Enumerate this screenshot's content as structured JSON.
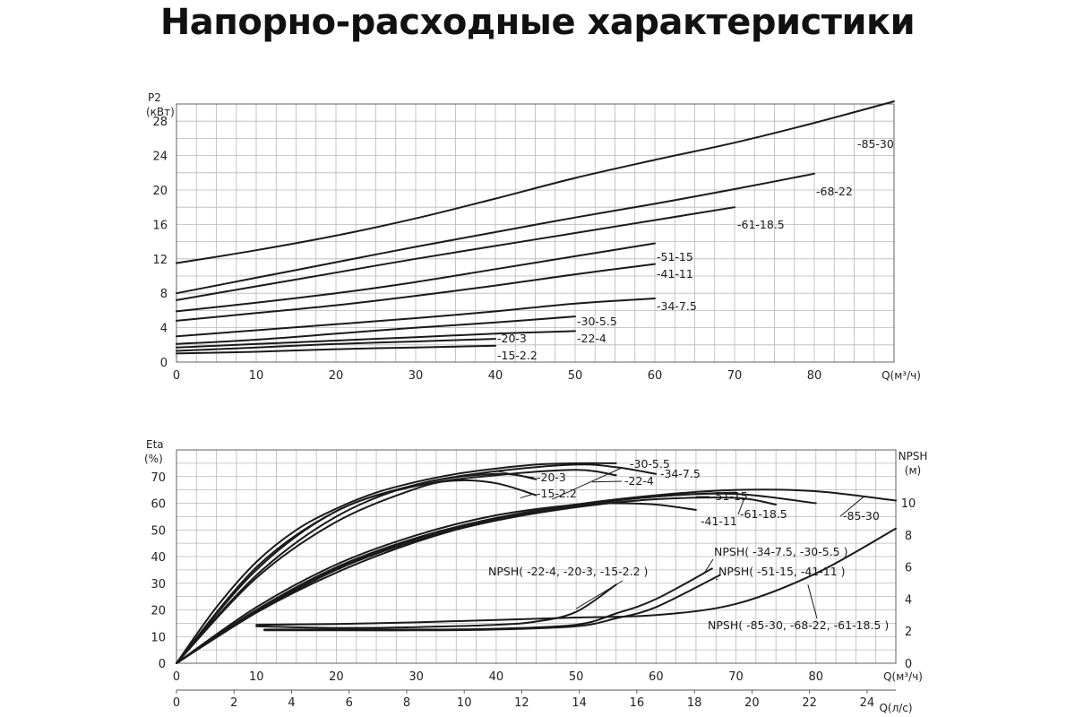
{
  "title": "Напорно-расходные характеристики",
  "chart_data": [
    {
      "type": "line",
      "ylabel": [
        "P2",
        "(кВт)"
      ],
      "xlabel": "Q(м³/ч)",
      "xlim": [
        0,
        90
      ],
      "ylim": [
        0,
        30
      ],
      "xticks": [
        0,
        10,
        20,
        30,
        40,
        50,
        60,
        70,
        80
      ],
      "yticks": [
        0,
        4,
        8,
        12,
        16,
        20,
        24,
        28
      ],
      "grid": true,
      "series": [
        {
          "name": "-85-30",
          "x": [
            0,
            10,
            20,
            30,
            40,
            50,
            60,
            70,
            80,
            90
          ],
          "y": [
            11.5,
            13,
            14.7,
            16.7,
            19,
            21.4,
            23.5,
            25.5,
            27.8,
            30.3
          ]
        },
        {
          "name": "-68-22",
          "x": [
            0,
            10,
            20,
            30,
            40,
            50,
            60,
            70,
            80
          ],
          "y": [
            8,
            9.8,
            11.6,
            13.4,
            15.1,
            16.8,
            18.4,
            20.1,
            21.9
          ]
        },
        {
          "name": "-61-18.5",
          "x": [
            0,
            10,
            20,
            30,
            40,
            50,
            60,
            70
          ],
          "y": [
            7.2,
            8.8,
            10.4,
            12,
            13.5,
            15,
            16.5,
            18
          ]
        },
        {
          "name": "-51-15",
          "x": [
            0,
            10,
            20,
            30,
            40,
            50,
            60
          ],
          "y": [
            5.9,
            6.9,
            8,
            9.3,
            10.8,
            12.3,
            13.8
          ]
        },
        {
          "name": "-41-11",
          "x": [
            0,
            10,
            20,
            30,
            40,
            50,
            60
          ],
          "y": [
            4.8,
            5.7,
            6.6,
            7.7,
            8.9,
            10.2,
            11.4
          ]
        },
        {
          "name": "-34-7.5",
          "x": [
            0,
            10,
            20,
            30,
            40,
            50,
            60
          ],
          "y": [
            3,
            3.7,
            4.4,
            5.1,
            5.9,
            6.8,
            7.4
          ]
        },
        {
          "name": "-30-5.5",
          "x": [
            0,
            10,
            20,
            30,
            40,
            50
          ],
          "y": [
            2.1,
            2.6,
            3.3,
            4,
            4.6,
            5.3
          ]
        },
        {
          "name": "-22-4",
          "x": [
            0,
            10,
            20,
            30,
            40,
            50
          ],
          "y": [
            1.7,
            2.1,
            2.5,
            2.9,
            3.3,
            3.6
          ]
        },
        {
          "name": "-20-3",
          "x": [
            0,
            10,
            20,
            30,
            40
          ],
          "y": [
            1.3,
            1.7,
            2.1,
            2.4,
            2.7
          ]
        },
        {
          "name": "-15-2.2",
          "x": [
            0,
            10,
            20,
            30,
            40
          ],
          "y": [
            1,
            1.2,
            1.5,
            1.7,
            1.9
          ]
        }
      ]
    },
    {
      "type": "line",
      "ylabel": [
        "Eta",
        "(%)"
      ],
      "y2label": [
        "NPSH",
        "(м)"
      ],
      "xlabel": "Q(м³/ч)",
      "x2label": "Q(л/с)",
      "xlim": [
        0,
        90
      ],
      "ylim": [
        0,
        80
      ],
      "y2lim": [
        0,
        13.3
      ],
      "xticks": [
        0,
        10,
        20,
        30,
        40,
        50,
        60,
        70,
        80
      ],
      "yticks": [
        0,
        10,
        20,
        30,
        40,
        50,
        60,
        70
      ],
      "x2ticks": [
        0,
        2,
        4,
        6,
        8,
        10,
        12,
        14,
        16,
        18,
        20,
        22,
        24
      ],
      "y2ticks": [
        0,
        2,
        4,
        6,
        8,
        10
      ],
      "grid": true,
      "series": [
        {
          "name": "-30-5.5",
          "x": [
            0,
            5,
            10,
            15,
            20,
            25,
            30,
            35,
            40,
            45,
            50,
            55
          ],
          "y": [
            0,
            21,
            38,
            50,
            58,
            64,
            68,
            71,
            73,
            74.5,
            75,
            75
          ]
        },
        {
          "name": "-34-7.5",
          "x": [
            0,
            10,
            20,
            30,
            40,
            50,
            55,
            60
          ],
          "y": [
            0,
            36,
            57,
            67,
            72,
            74.5,
            73.5,
            71
          ]
        },
        {
          "name": "-22-4",
          "x": [
            0,
            10,
            20,
            30,
            40,
            50,
            55
          ],
          "y": [
            0,
            35,
            57,
            66.5,
            70.5,
            72.5,
            70.5
          ]
        },
        {
          "name": "-20-3",
          "x": [
            0,
            10,
            20,
            30,
            40,
            45
          ],
          "y": [
            0,
            33,
            55,
            67,
            71,
            69
          ]
        },
        {
          "name": "-15-2.2",
          "x": [
            0,
            10,
            20,
            30,
            35,
            40,
            45
          ],
          "y": [
            0,
            32,
            53,
            65.5,
            68.5,
            67.5,
            63
          ]
        },
        {
          "name": "-51-15",
          "x": [
            0,
            10,
            20,
            30,
            40,
            50,
            60,
            65,
            70
          ],
          "y": [
            0,
            20,
            36,
            47,
            54.5,
            59.5,
            62.5,
            63.5,
            64
          ]
        },
        {
          "name": "-41-11",
          "x": [
            0,
            10,
            20,
            30,
            40,
            50,
            55,
            60,
            65
          ],
          "y": [
            0,
            21,
            37,
            48,
            55.5,
            59.5,
            60,
            59.5,
            57.5
          ]
        },
        {
          "name": "-61-18.5",
          "x": [
            0,
            10,
            20,
            30,
            40,
            50,
            60,
            70,
            75
          ],
          "y": [
            0,
            19,
            35,
            46,
            53.5,
            58.5,
            61.5,
            62,
            59.5
          ]
        },
        {
          "name": "-68-22",
          "x": [
            0,
            10,
            20,
            30,
            40,
            50,
            60,
            70,
            80
          ],
          "y": [
            0,
            19.5,
            35.5,
            46.5,
            54,
            59,
            62.5,
            63.5,
            60
          ]
        },
        {
          "name": "-85-30",
          "x": [
            0,
            10,
            20,
            30,
            40,
            50,
            60,
            70,
            80,
            90
          ],
          "y": [
            0,
            19,
            34,
            45.5,
            54,
            59.5,
            63,
            65,
            64.5,
            61
          ]
        },
        {
          "name": "NPSH( -22-4, -20-3, -15-2.2 )",
          "axis": "y2",
          "x": [
            10,
            20,
            30,
            40,
            45,
            50,
            55
          ],
          "y": [
            2.3,
            2.2,
            2.25,
            2.4,
            2.6,
            3.2,
            4.9
          ]
        },
        {
          "name": "NPSH( -34-7.5, -30-5.5 )",
          "axis": "y2",
          "x": [
            11,
            20,
            30,
            40,
            50,
            55,
            60,
            67
          ],
          "y": [
            2.1,
            2.1,
            2.1,
            2.15,
            2.4,
            3.1,
            4,
            5.9
          ]
        },
        {
          "name": "NPSH( -51-15, -41-11 )",
          "axis": "y2",
          "x": [
            11,
            20,
            30,
            40,
            50,
            55,
            60,
            68
          ],
          "y": [
            2.05,
            2.05,
            2.05,
            2.1,
            2.3,
            2.8,
            3.5,
            5.5
          ]
        },
        {
          "name": "NPSH( -85-30, -68-22, -61-18.5 )",
          "axis": "y2",
          "x": [
            10,
            20,
            30,
            40,
            50,
            60,
            70,
            80,
            90
          ],
          "y": [
            2.4,
            2.45,
            2.55,
            2.7,
            2.85,
            3,
            3.7,
            5.6,
            8.4
          ]
        }
      ]
    }
  ]
}
